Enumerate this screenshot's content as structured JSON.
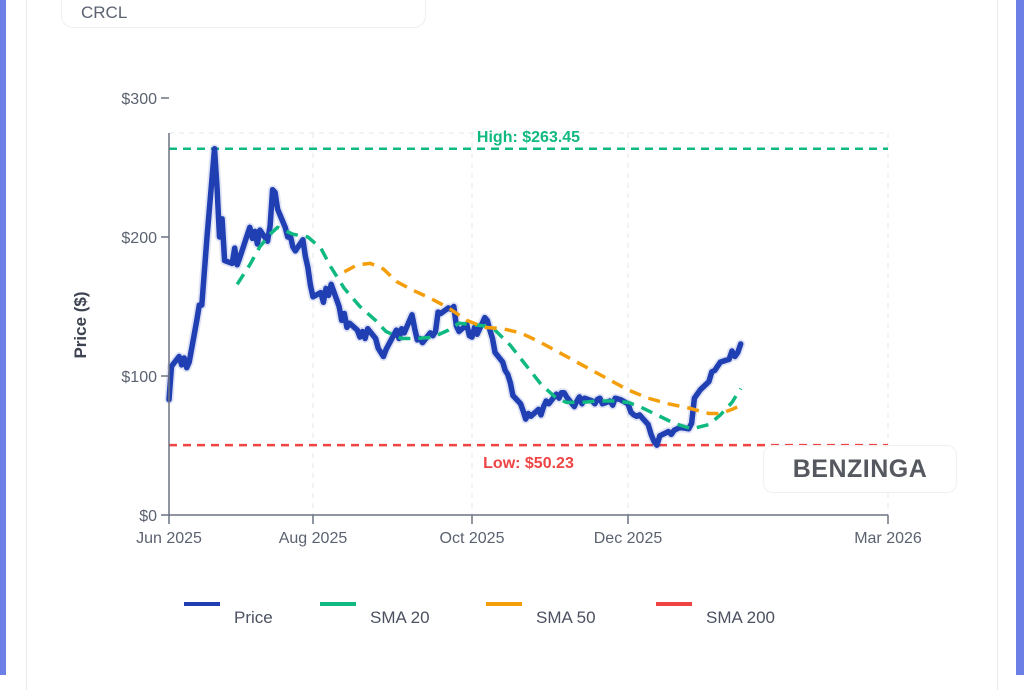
{
  "ticker": "CRCL",
  "watermark": "BENZINGA",
  "colors": {
    "price": "#1f3fb3",
    "sma20": "#10b981",
    "sma200": "#ef4444",
    "sma50": "#f59e0b",
    "high_line": "#10b981",
    "low_line": "#ef4444",
    "frame": "#6b7fe6",
    "axis": "#6b7280"
  },
  "chart_data": {
    "type": "line",
    "title": "",
    "xlabel": "",
    "ylabel": "Price ($)",
    "ylim": [
      0,
      275
    ],
    "y_ticks": [
      {
        "value": 0,
        "label": "$0"
      },
      {
        "value": 100,
        "label": "$100"
      },
      {
        "value": 200,
        "label": "$200"
      },
      {
        "value": 300,
        "label": "$300"
      }
    ],
    "x_ticks": [
      {
        "date": "2025-06-05",
        "label": "Jun 2025"
      },
      {
        "date": "2025-08-01",
        "label": "Aug 2025"
      },
      {
        "date": "2025-10-01",
        "label": "Oct 2025"
      },
      {
        "date": "2025-12-01",
        "label": "Dec 2025"
      },
      {
        "date": "2026-03-01",
        "label": "Mar 2026"
      }
    ],
    "xlim": [
      "2025-06-05",
      "2026-03-01"
    ],
    "grid": true,
    "legend_position": "bottom",
    "annotations": [
      {
        "type": "hline",
        "value": 263.45,
        "label": "High: $263.45",
        "color_key": "high_line"
      },
      {
        "type": "hline",
        "value": 50.23,
        "label": "Low: $50.23",
        "color_key": "low_line"
      }
    ],
    "series": [
      {
        "name": "Price",
        "color_key": "price",
        "style": "solid",
        "points": [
          [
            "2025-06-05",
            83
          ],
          [
            "2025-06-06",
            107
          ],
          [
            "2025-06-09",
            114
          ],
          [
            "2025-06-10",
            108
          ],
          [
            "2025-06-11",
            113
          ],
          [
            "2025-06-12",
            106
          ],
          [
            "2025-06-13",
            110
          ],
          [
            "2025-06-16",
            140
          ],
          [
            "2025-06-17",
            151
          ],
          [
            "2025-06-18",
            151
          ],
          [
            "2025-06-20",
            199
          ],
          [
            "2025-06-23",
            263.45
          ],
          [
            "2025-06-24",
            236
          ],
          [
            "2025-06-25",
            200
          ],
          [
            "2025-06-26",
            213
          ],
          [
            "2025-06-27",
            183
          ],
          [
            "2025-06-30",
            181
          ],
          [
            "2025-07-01",
            192
          ],
          [
            "2025-07-02",
            180
          ],
          [
            "2025-07-03",
            185
          ],
          [
            "2025-07-07",
            207
          ],
          [
            "2025-07-08",
            199
          ],
          [
            "2025-07-09",
            204
          ],
          [
            "2025-07-10",
            195
          ],
          [
            "2025-07-11",
            205
          ],
          [
            "2025-07-14",
            197
          ],
          [
            "2025-07-15",
            208
          ],
          [
            "2025-07-16",
            234
          ],
          [
            "2025-07-17",
            232
          ],
          [
            "2025-07-18",
            220
          ],
          [
            "2025-07-21",
            207
          ],
          [
            "2025-07-22",
            200
          ],
          [
            "2025-07-23",
            201
          ],
          [
            "2025-07-24",
            193
          ],
          [
            "2025-07-25",
            190
          ],
          [
            "2025-07-28",
            198
          ],
          [
            "2025-07-29",
            186
          ],
          [
            "2025-07-30",
            178
          ],
          [
            "2025-07-31",
            165
          ],
          [
            "2025-08-01",
            157
          ],
          [
            "2025-08-04",
            160
          ],
          [
            "2025-08-05",
            153
          ],
          [
            "2025-08-06",
            163
          ],
          [
            "2025-08-07",
            158
          ],
          [
            "2025-08-08",
            166
          ],
          [
            "2025-08-11",
            150
          ],
          [
            "2025-08-12",
            140
          ],
          [
            "2025-08-13",
            145
          ],
          [
            "2025-08-14",
            135
          ],
          [
            "2025-08-15",
            138
          ],
          [
            "2025-08-18",
            133
          ],
          [
            "2025-08-19",
            128
          ],
          [
            "2025-08-20",
            132
          ],
          [
            "2025-08-21",
            127
          ],
          [
            "2025-08-22",
            134
          ],
          [
            "2025-08-25",
            127
          ],
          [
            "2025-08-26",
            120
          ],
          [
            "2025-08-27",
            117
          ],
          [
            "2025-08-28",
            114
          ],
          [
            "2025-08-29",
            119
          ],
          [
            "2025-09-02",
            133
          ],
          [
            "2025-09-03",
            127
          ],
          [
            "2025-09-04",
            134
          ],
          [
            "2025-09-05",
            131
          ],
          [
            "2025-09-08",
            144
          ],
          [
            "2025-09-09",
            134
          ],
          [
            "2025-09-10",
            126
          ],
          [
            "2025-09-11",
            127
          ],
          [
            "2025-09-12",
            124
          ],
          [
            "2025-09-15",
            131
          ],
          [
            "2025-09-16",
            129
          ],
          [
            "2025-09-17",
            132
          ],
          [
            "2025-09-18",
            146
          ],
          [
            "2025-09-19",
            145
          ],
          [
            "2025-09-22",
            149
          ],
          [
            "2025-09-23",
            148
          ],
          [
            "2025-09-24",
            150
          ],
          [
            "2025-09-25",
            136
          ],
          [
            "2025-09-26",
            132
          ],
          [
            "2025-09-29",
            137
          ],
          [
            "2025-09-30",
            129
          ],
          [
            "2025-10-01",
            128
          ],
          [
            "2025-10-02",
            135
          ],
          [
            "2025-10-03",
            130
          ],
          [
            "2025-10-06",
            142
          ],
          [
            "2025-10-07",
            140
          ],
          [
            "2025-10-08",
            133
          ],
          [
            "2025-10-09",
            127
          ],
          [
            "2025-10-10",
            117
          ],
          [
            "2025-10-13",
            110
          ],
          [
            "2025-10-14",
            104
          ],
          [
            "2025-10-15",
            101
          ],
          [
            "2025-10-16",
            95
          ],
          [
            "2025-10-17",
            86
          ],
          [
            "2025-10-20",
            80
          ],
          [
            "2025-10-21",
            75
          ],
          [
            "2025-10-22",
            69
          ],
          [
            "2025-10-23",
            73
          ],
          [
            "2025-10-24",
            71
          ],
          [
            "2025-10-27",
            76
          ],
          [
            "2025-10-28",
            72
          ],
          [
            "2025-10-29",
            78
          ],
          [
            "2025-10-30",
            82
          ],
          [
            "2025-10-31",
            80
          ],
          [
            "2025-11-03",
            87
          ],
          [
            "2025-11-04",
            84
          ],
          [
            "2025-11-05",
            88
          ],
          [
            "2025-11-06",
            88
          ],
          [
            "2025-11-07",
            85
          ],
          [
            "2025-11-10",
            78
          ],
          [
            "2025-11-11",
            82
          ],
          [
            "2025-11-12",
            85
          ],
          [
            "2025-11-13",
            80
          ],
          [
            "2025-11-14",
            84
          ],
          [
            "2025-11-17",
            82
          ],
          [
            "2025-11-18",
            80
          ],
          [
            "2025-11-19",
            83
          ],
          [
            "2025-11-20",
            84
          ],
          [
            "2025-11-21",
            80
          ],
          [
            "2025-11-24",
            82
          ],
          [
            "2025-11-25",
            79
          ],
          [
            "2025-11-26",
            84
          ],
          [
            "2025-11-28",
            83
          ],
          [
            "2025-12-01",
            80
          ],
          [
            "2025-12-02",
            74
          ],
          [
            "2025-12-03",
            72
          ],
          [
            "2025-12-04",
            71
          ],
          [
            "2025-12-05",
            72
          ],
          [
            "2025-12-08",
            65
          ],
          [
            "2025-12-09",
            58
          ],
          [
            "2025-12-10",
            53
          ],
          [
            "2025-12-11",
            50.23
          ],
          [
            "2025-12-12",
            57
          ],
          [
            "2025-12-15",
            60
          ],
          [
            "2025-12-16",
            58
          ],
          [
            "2025-12-17",
            61
          ],
          [
            "2025-12-18",
            62
          ],
          [
            "2025-12-19",
            63
          ],
          [
            "2025-12-22",
            62
          ],
          [
            "2025-12-23",
            66
          ],
          [
            "2025-12-24",
            84
          ],
          [
            "2025-12-26",
            90
          ],
          [
            "2025-12-29",
            96
          ],
          [
            "2025-12-30",
            103
          ],
          [
            "2025-12-31",
            104
          ],
          [
            "2026-01-02",
            110
          ],
          [
            "2026-01-05",
            112
          ],
          [
            "2026-01-06",
            118
          ],
          [
            "2026-01-07",
            114
          ],
          [
            "2026-01-08",
            117
          ],
          [
            "2026-01-09",
            123
          ]
        ]
      },
      {
        "name": "SMA 20",
        "color_key": "sma20",
        "style": "dashed",
        "points": [
          [
            "2025-07-02",
            166
          ],
          [
            "2025-07-07",
            180
          ],
          [
            "2025-07-11",
            193
          ],
          [
            "2025-07-15",
            202
          ],
          [
            "2025-07-18",
            207
          ],
          [
            "2025-07-24",
            202
          ],
          [
            "2025-07-30",
            200
          ],
          [
            "2025-08-04",
            192
          ],
          [
            "2025-08-08",
            178
          ],
          [
            "2025-08-13",
            163
          ],
          [
            "2025-08-19",
            150
          ],
          [
            "2025-08-25",
            140
          ],
          [
            "2025-08-29",
            132
          ],
          [
            "2025-09-04",
            127
          ],
          [
            "2025-09-10",
            127
          ],
          [
            "2025-09-16",
            128
          ],
          [
            "2025-09-22",
            133
          ],
          [
            "2025-09-26",
            138
          ],
          [
            "2025-10-01",
            137
          ],
          [
            "2025-10-06",
            136
          ],
          [
            "2025-10-10",
            133
          ],
          [
            "2025-10-16",
            122
          ],
          [
            "2025-10-22",
            108
          ],
          [
            "2025-10-28",
            94
          ],
          [
            "2025-11-03",
            84
          ],
          [
            "2025-11-07",
            81
          ],
          [
            "2025-11-13",
            81
          ],
          [
            "2025-11-19",
            82
          ],
          [
            "2025-11-25",
            82
          ],
          [
            "2025-12-01",
            81
          ],
          [
            "2025-12-05",
            78
          ],
          [
            "2025-12-11",
            72
          ],
          [
            "2025-12-17",
            66
          ],
          [
            "2025-12-23",
            62
          ],
          [
            "2025-12-29",
            65
          ],
          [
            "2026-01-02",
            72
          ],
          [
            "2026-01-06",
            81
          ],
          [
            "2026-01-09",
            91
          ]
        ]
      },
      {
        "name": "SMA 50",
        "color_key": "sma50",
        "style": "dashed",
        "points": [
          [
            "2025-08-13",
            175
          ],
          [
            "2025-08-18",
            180
          ],
          [
            "2025-08-23",
            181
          ],
          [
            "2025-08-28",
            177
          ],
          [
            "2025-09-02",
            168
          ],
          [
            "2025-09-08",
            162
          ],
          [
            "2025-09-15",
            156
          ],
          [
            "2025-09-22",
            149
          ],
          [
            "2025-09-29",
            140
          ],
          [
            "2025-10-06",
            135
          ],
          [
            "2025-10-13",
            134
          ],
          [
            "2025-10-20",
            131
          ],
          [
            "2025-10-27",
            125
          ],
          [
            "2025-11-03",
            118
          ],
          [
            "2025-11-10",
            111
          ],
          [
            "2025-11-17",
            104
          ],
          [
            "2025-11-24",
            97
          ],
          [
            "2025-12-01",
            90
          ],
          [
            "2025-12-08",
            84
          ],
          [
            "2025-12-15",
            80
          ],
          [
            "2025-12-22",
            77
          ],
          [
            "2025-12-29",
            73
          ],
          [
            "2026-01-02",
            73
          ],
          [
            "2026-01-06",
            76
          ],
          [
            "2026-01-09",
            79
          ]
        ]
      },
      {
        "name": "SMA 200",
        "color_key": "sma200",
        "style": "dashed",
        "points": []
      }
    ]
  }
}
